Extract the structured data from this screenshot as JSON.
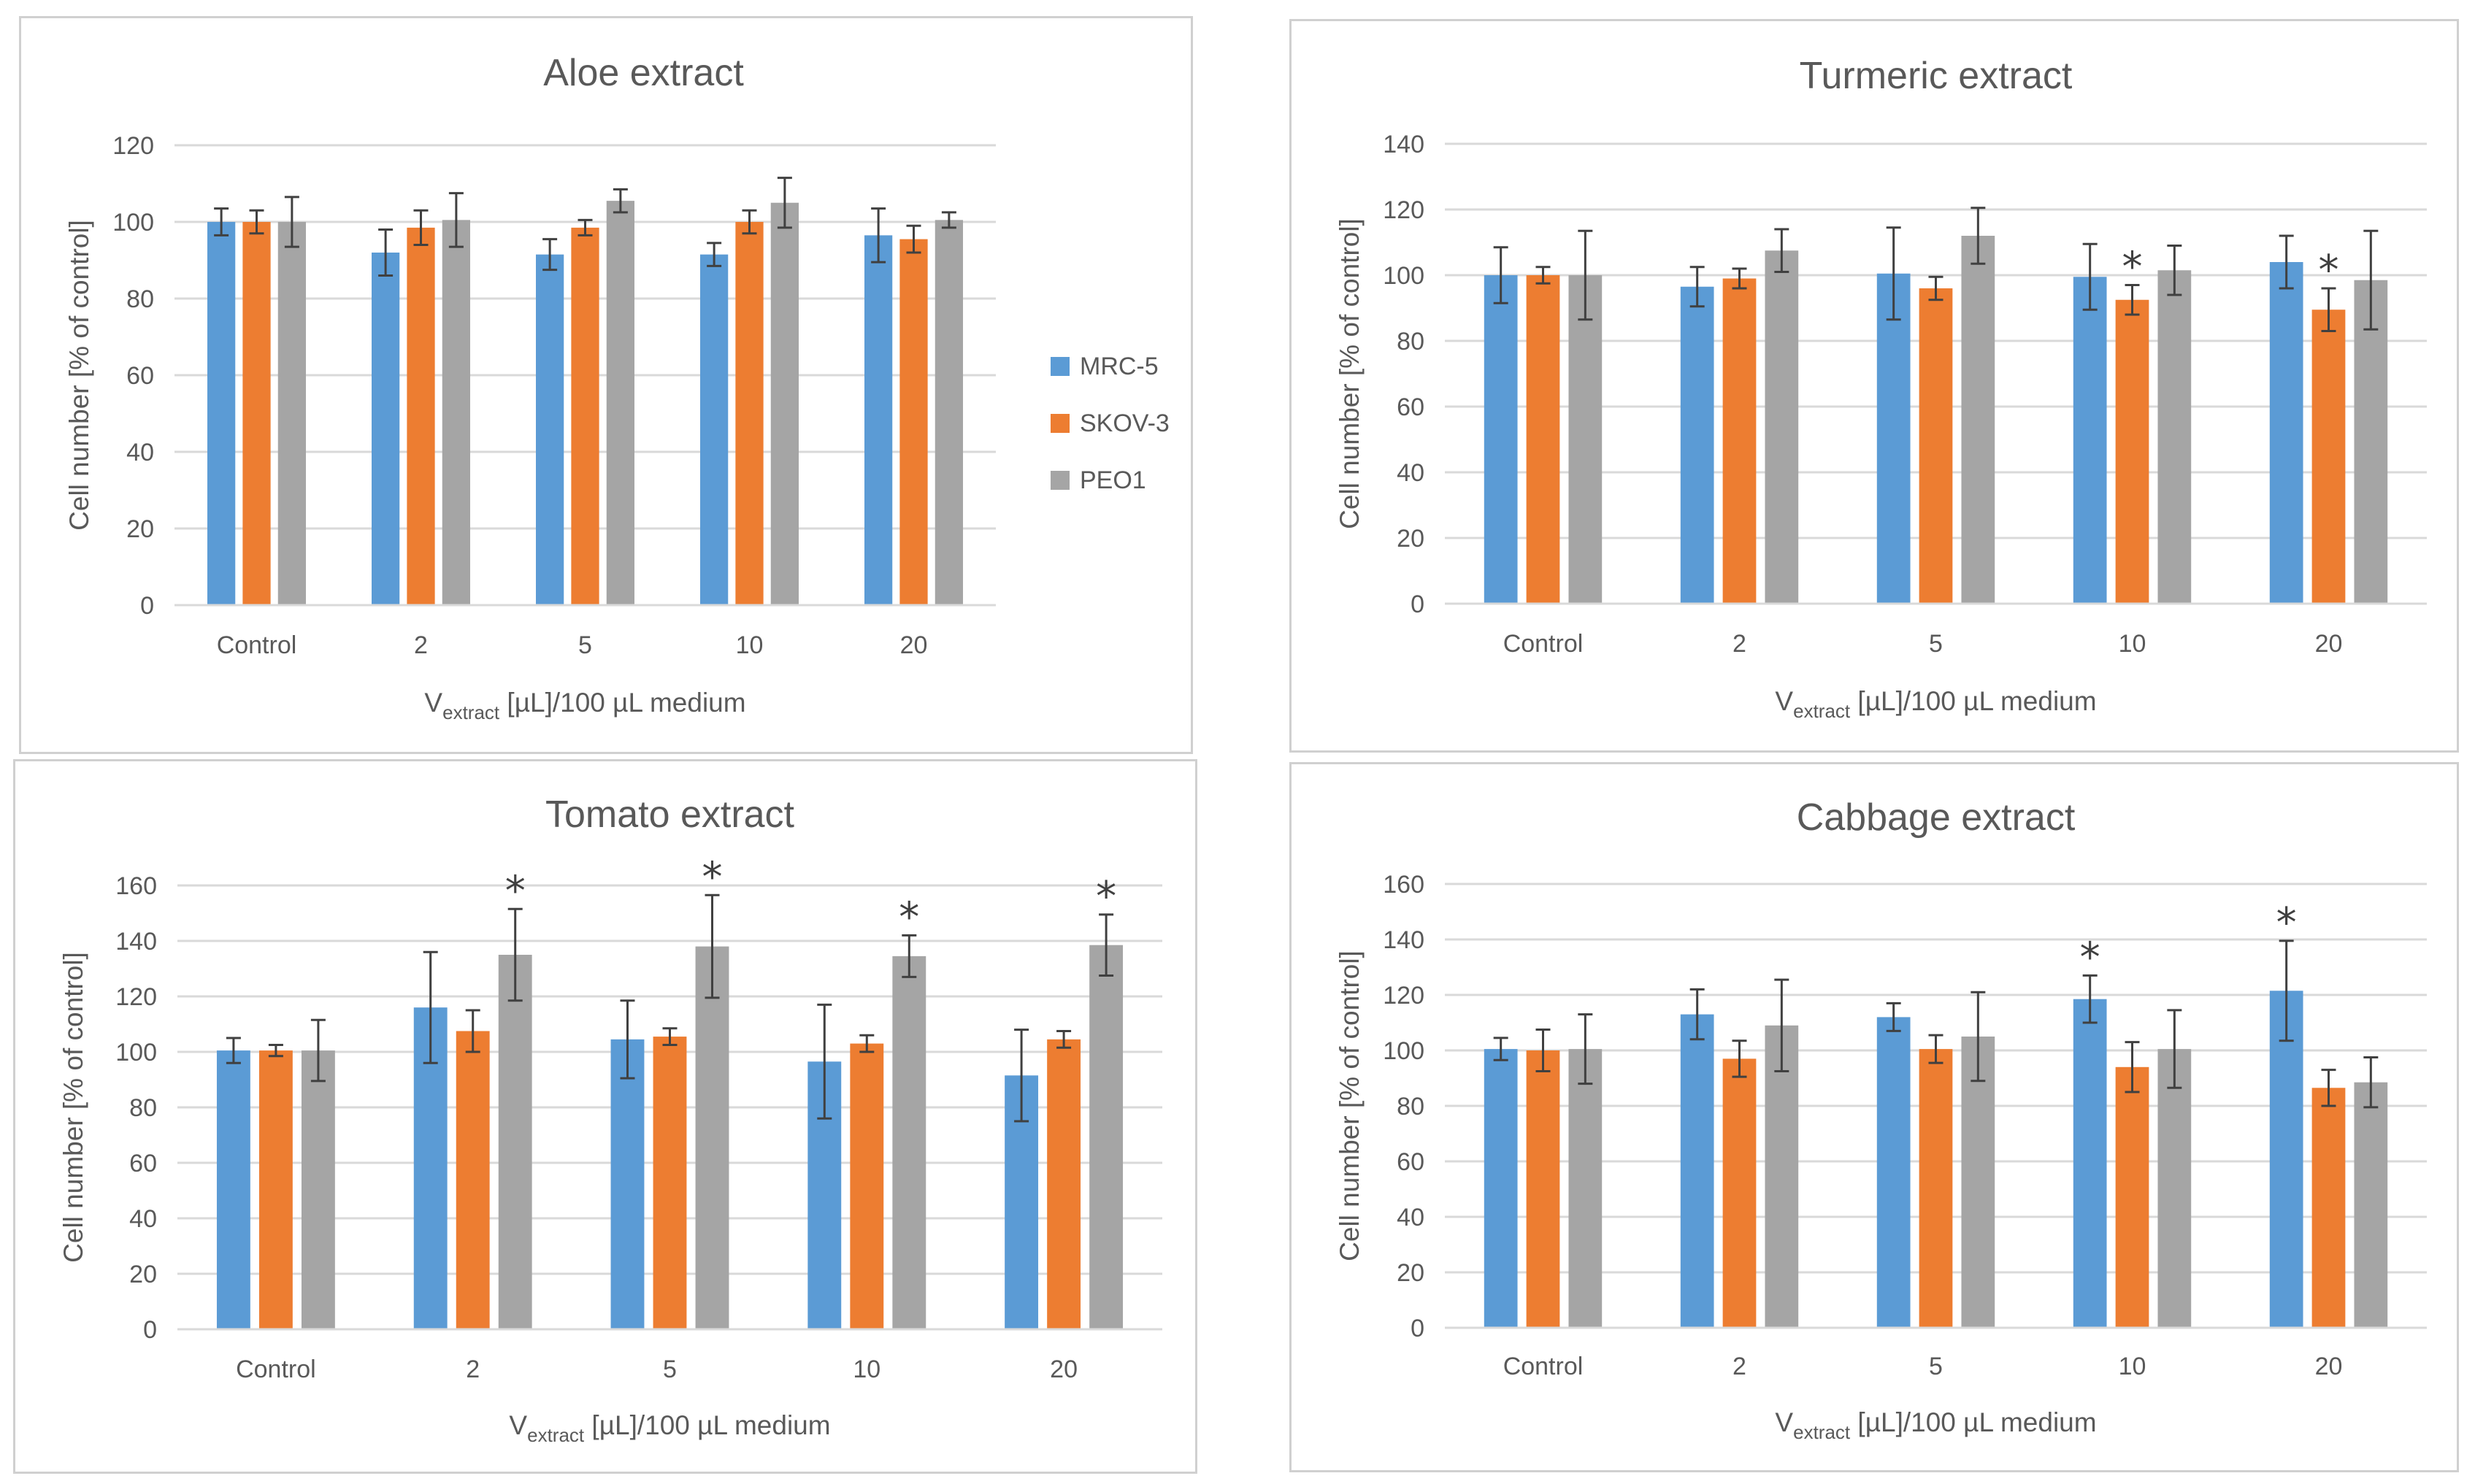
{
  "colors": {
    "MRC-5": "#5b9bd5",
    "SKOV-3": "#ed7d31",
    "PEO1": "#a5a5a5",
    "grid": "#d9d9d9",
    "text": "#595959",
    "error": "#404040"
  },
  "legend": {
    "items": [
      "MRC-5",
      "SKOV-3",
      "PEO1"
    ],
    "position": "right"
  },
  "chart_data": [
    {
      "type": "bar",
      "title": "Aloe extract",
      "categories": [
        "Control",
        "2",
        "5",
        "10",
        "20"
      ],
      "ylim": [
        0,
        120
      ],
      "ytick_step": 20,
      "ylabel": "Cell number [% of control]",
      "xlabel": {
        "v": "V",
        "sub": "extract",
        "rest": " [µL]/100 µL medium"
      },
      "series": [
        {
          "name": "MRC-5",
          "values": [
            100,
            92,
            91.5,
            91.5,
            96.5
          ],
          "errors": [
            3.5,
            6,
            4,
            3,
            7
          ]
        },
        {
          "name": "SKOV-3",
          "values": [
            100,
            98.5,
            98.5,
            100,
            95.5
          ],
          "errors": [
            3,
            4.5,
            2,
            3,
            3.5
          ]
        },
        {
          "name": "PEO1",
          "values": [
            100,
            100.5,
            105.5,
            105,
            100.5
          ],
          "errors": [
            6.5,
            7,
            3,
            6.5,
            2
          ]
        }
      ],
      "stars": [
        null,
        null,
        null,
        null,
        null
      ],
      "legend_on": true
    },
    {
      "type": "bar",
      "title": "Turmeric extract",
      "categories": [
        "Control",
        "2",
        "5",
        "10",
        "20"
      ],
      "ylim": [
        0,
        140
      ],
      "ytick_step": 20,
      "ylabel": "Cell number [% of control]",
      "xlabel": {
        "v": "V",
        "sub": "extract",
        "rest": " [µL]/100 µL medium"
      },
      "series": [
        {
          "name": "MRC-5",
          "values": [
            100,
            96.5,
            100.5,
            99.5,
            104
          ],
          "errors": [
            8.5,
            6,
            14,
            10,
            8
          ]
        },
        {
          "name": "SKOV-3",
          "values": [
            100,
            99,
            96,
            92.5,
            89.5
          ],
          "errors": [
            2.5,
            3,
            3.5,
            4.5,
            6.5
          ]
        },
        {
          "name": "PEO1",
          "values": [
            100,
            107.5,
            112,
            101.5,
            98.5
          ],
          "errors": [
            13.5,
            6.5,
            8.5,
            7.5,
            15
          ]
        }
      ],
      "stars": [
        null,
        null,
        null,
        "SKOV-3",
        "SKOV-3"
      ],
      "star_symbol": "*",
      "legend_on": false
    },
    {
      "type": "bar",
      "title": "Tomato extract",
      "categories": [
        "Control",
        "2",
        "5",
        "10",
        "20"
      ],
      "ylim": [
        0,
        160
      ],
      "ytick_step": 20,
      "ylabel": "Cell number [% of control]",
      "xlabel": {
        "v": "V",
        "sub": "extract",
        "rest": " [µL]/100 µL medium"
      },
      "series": [
        {
          "name": "MRC-5",
          "values": [
            100.5,
            116,
            104.5,
            96.5,
            91.5
          ],
          "errors": [
            4.5,
            20,
            14,
            20.5,
            16.5
          ]
        },
        {
          "name": "SKOV-3",
          "values": [
            100.5,
            107.5,
            105.5,
            103,
            104.5
          ],
          "errors": [
            2,
            7.5,
            3,
            3,
            3
          ]
        },
        {
          "name": "PEO1",
          "values": [
            100.5,
            135,
            138,
            134.5,
            138.5
          ],
          "errors": [
            11,
            16.5,
            18.5,
            7.5,
            11
          ]
        }
      ],
      "stars": [
        null,
        "PEO1",
        "PEO1",
        "PEO1",
        "PEO1"
      ],
      "star_symbol": "*",
      "legend_on": false
    },
    {
      "type": "bar",
      "title": "Cabbage extract",
      "categories": [
        "Control",
        "2",
        "5",
        "10",
        "20"
      ],
      "ylim": [
        0,
        160
      ],
      "ytick_step": 20,
      "ylabel": "Cell number [% of control]",
      "xlabel": {
        "v": "V",
        "sub": "extract",
        "rest": " [µL]/100 µL medium"
      },
      "series": [
        {
          "name": "MRC-5",
          "values": [
            100.5,
            113,
            112,
            118.5,
            121.5
          ],
          "errors": [
            4,
            9,
            5,
            8.5,
            18
          ]
        },
        {
          "name": "SKOV-3",
          "values": [
            100,
            97,
            100.5,
            94,
            86.5
          ],
          "errors": [
            7.5,
            6.5,
            5,
            9,
            6.5
          ]
        },
        {
          "name": "PEO1",
          "values": [
            100.5,
            109,
            105,
            100.5,
            88.5
          ],
          "errors": [
            12.5,
            16.5,
            16,
            14,
            9
          ]
        }
      ],
      "stars": [
        null,
        null,
        null,
        "MRC-5",
        "MRC-5"
      ],
      "star_symbol": "*",
      "legend_on": false
    }
  ]
}
